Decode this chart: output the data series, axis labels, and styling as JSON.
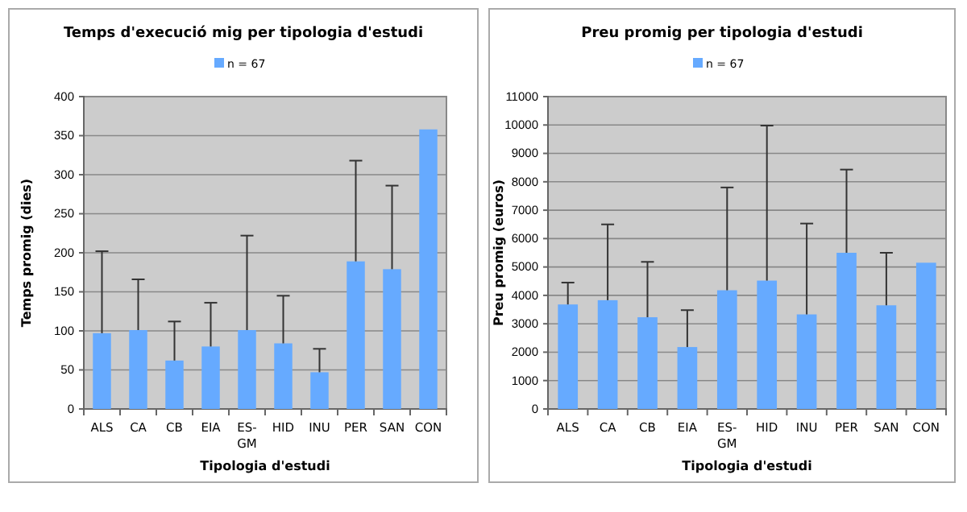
{
  "chart_data": [
    {
      "type": "bar",
      "title": "Temps d'execució mig per tipologia d'estudi",
      "xlabel": "Tipologia d'estudi",
      "ylabel": "Temps promig (dies)",
      "categories": [
        "ALS",
        "CA",
        "CB",
        "EIA",
        "ES-GM",
        "HID",
        "INU",
        "PER",
        "SAN",
        "CON"
      ],
      "series": [
        {
          "name": "n = 67",
          "color": "#66aaff",
          "values": [
            97,
            101,
            62,
            80,
            101,
            84,
            47,
            189,
            179,
            358
          ],
          "errors": [
            [
              97,
              202
            ],
            [
              101,
              166
            ],
            [
              62,
              112
            ],
            [
              80,
              136
            ],
            [
              101,
              222
            ],
            [
              84,
              145
            ],
            [
              47,
              77
            ],
            [
              189,
              318
            ],
            [
              179,
              286
            ],
            null
          ]
        }
      ],
      "ylim": [
        0,
        400
      ],
      "yticks": [
        0,
        50,
        100,
        150,
        200,
        250,
        300,
        350,
        400
      ],
      "grid": "y",
      "legend": "top"
    },
    {
      "type": "bar",
      "title": "Preu promig per tipologia d'estudi",
      "xlabel": "Tipologia d'estudi",
      "ylabel": "Preu promig (euros)",
      "categories": [
        "ALS",
        "CA",
        "CB",
        "EIA",
        "ES-GM",
        "HID",
        "INU",
        "PER",
        "SAN",
        "CON"
      ],
      "series": [
        {
          "name": "n = 67",
          "color": "#66aaff",
          "values": [
            3680,
            3830,
            3230,
            2180,
            4180,
            4520,
            3330,
            5500,
            3650,
            5150
          ],
          "errors": [
            [
              3680,
              4450
            ],
            [
              3830,
              6500
            ],
            [
              3230,
              5180
            ],
            [
              2180,
              3480
            ],
            [
              4180,
              7800
            ],
            [
              4520,
              9980
            ],
            [
              3330,
              6530
            ],
            [
              5500,
              8430
            ],
            [
              3650,
              5500
            ],
            null
          ]
        }
      ],
      "ylim": [
        0,
        11000
      ],
      "yticks": [
        0,
        1000,
        2000,
        3000,
        4000,
        5000,
        6000,
        7000,
        8000,
        9000,
        10000,
        11000
      ],
      "grid": "y",
      "legend": "top"
    }
  ]
}
